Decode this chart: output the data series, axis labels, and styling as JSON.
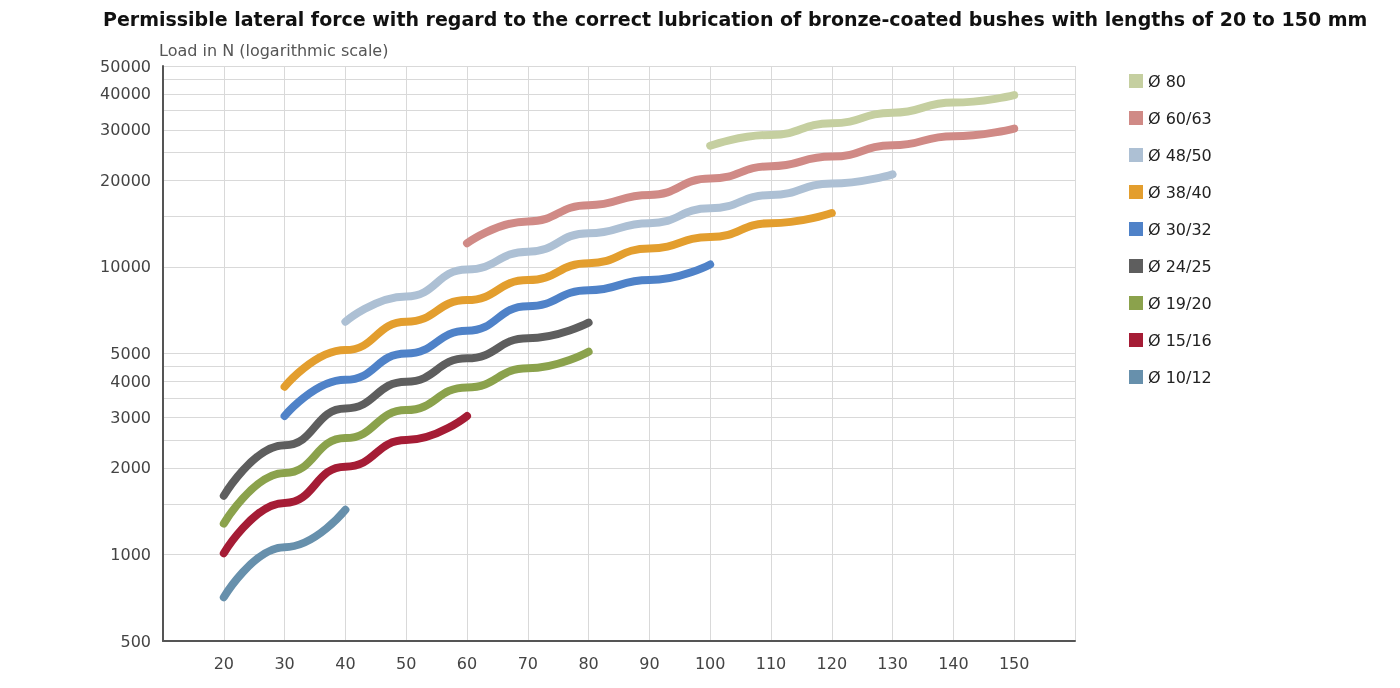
{
  "chart_data": {
    "type": "line",
    "title": "Permissible lateral force with regard to the correct lubrication of bronze-coated bushes with lengths of 20 to 150 mm",
    "ylabel": "Load in N (logarithmic scale)",
    "log": "y",
    "grid": true,
    "legend": "right",
    "marker": "none",
    "line_style": "solid",
    "xlim": [
      10,
      160
    ],
    "xticks": [
      20,
      30,
      40,
      50,
      60,
      70,
      80,
      90,
      100,
      110,
      120,
      130,
      140,
      150,
      {
        "value": 160,
        "label": null
      }
    ],
    "ylim": [
      500,
      50000
    ],
    "yticks": [
      500,
      1000,
      {
        "value": 1500,
        "label": null
      },
      2000,
      {
        "value": 2500,
        "label": null
      },
      3000,
      {
        "value": 3500,
        "label": null
      },
      4000,
      {
        "value": 4500,
        "label": null
      },
      5000,
      10000,
      {
        "value": 15000,
        "label": null
      },
      20000,
      {
        "value": 25000,
        "label": null
      },
      30000,
      {
        "value": 35000,
        "label": null
      },
      40000,
      {
        "value": 45000,
        "label": null
      },
      50000
    ],
    "series": [
      {
        "name": "Ø 80",
        "color": "#c5cfa0",
        "x": [
          100,
          110,
          120,
          130,
          140,
          150
        ],
        "values": [
          26400,
          28800,
          31600,
          34400,
          37300,
          39600
        ]
      },
      {
        "name": "Ø 60/63",
        "color": "#d08a86",
        "x": [
          60,
          70,
          80,
          90,
          100,
          110,
          120,
          130,
          140,
          150
        ],
        "values": [
          12100,
          14400,
          16400,
          17800,
          20300,
          22400,
          24200,
          26500,
          28500,
          30300
        ]
      },
      {
        "name": "Ø 48/50",
        "color": "#adc0d4",
        "x": [
          40,
          50,
          60,
          70,
          80,
          90,
          100,
          110,
          120,
          130
        ],
        "values": [
          6450,
          7900,
          9800,
          11300,
          13100,
          14200,
          16000,
          17800,
          19500,
          21000
        ]
      },
      {
        "name": "Ø 38/40",
        "color": "#e39e2e",
        "x": [
          30,
          40,
          50,
          60,
          70,
          80,
          90,
          100,
          110,
          120
        ],
        "values": [
          3830,
          5140,
          6450,
          7670,
          9000,
          10300,
          11600,
          12700,
          14200,
          15400
        ]
      },
      {
        "name": "Ø 30/32",
        "color": "#4f82c8",
        "x": [
          30,
          40,
          50,
          60,
          70,
          80,
          90,
          100
        ],
        "values": [
          3030,
          4050,
          5000,
          6000,
          7300,
          8300,
          9000,
          10200
        ]
      },
      {
        "name": "Ø 24/25",
        "color": "#5e5e5e",
        "x": [
          20,
          30,
          40,
          50,
          60,
          70,
          80
        ],
        "values": [
          1600,
          2400,
          3220,
          3990,
          4810,
          5650,
          6400
        ]
      },
      {
        "name": "Ø 19/20",
        "color": "#8ba24c",
        "x": [
          20,
          30,
          40,
          50,
          60,
          70,
          80
        ],
        "values": [
          1280,
          1920,
          2540,
          3180,
          3810,
          4440,
          5070
        ]
      },
      {
        "name": "Ø 15/16",
        "color": "#a51c35",
        "x": [
          20,
          30,
          40,
          50,
          60
        ],
        "values": [
          1010,
          1510,
          2020,
          2500,
          3030
        ]
      },
      {
        "name": "Ø 10/12",
        "color": "#6790ac",
        "x": [
          20,
          30,
          40
        ],
        "values": [
          710,
          1060,
          1430
        ]
      }
    ]
  }
}
